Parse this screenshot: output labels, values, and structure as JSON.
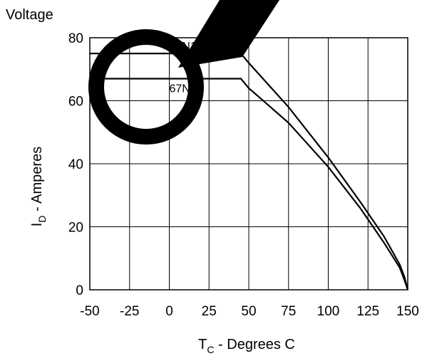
{
  "chart_data": {
    "type": "line",
    "title": "Voltage",
    "xlabel": {
      "main": "T",
      "sub": "C",
      "rest": " - Degrees C"
    },
    "ylabel": {
      "main": "I",
      "sub": "D",
      "rest": " - Amperes"
    },
    "xlim": [
      -50,
      150
    ],
    "ylim": [
      0,
      80
    ],
    "x_ticks": [
      -50,
      -25,
      0,
      25,
      50,
      75,
      100,
      125,
      150
    ],
    "y_ticks": [
      0,
      20,
      40,
      60,
      80
    ],
    "grid": true,
    "series": [
      {
        "name": "75N10",
        "x": [
          -50,
          40,
          45,
          50,
          75,
          100,
          120,
          135,
          145,
          148,
          150
        ],
        "y": [
          75,
          75,
          75,
          72,
          58,
          42,
          28,
          17,
          8,
          4,
          0
        ]
      },
      {
        "name": "67N10",
        "x": [
          -50,
          40,
          45,
          50,
          75,
          100,
          120,
          135,
          145,
          148,
          150
        ],
        "y": [
          67,
          67,
          67,
          64,
          53,
          39,
          26,
          15,
          7,
          3,
          0
        ]
      }
    ]
  },
  "overlay": {
    "shape_color": "#000000",
    "symbol": "circle-slash"
  }
}
